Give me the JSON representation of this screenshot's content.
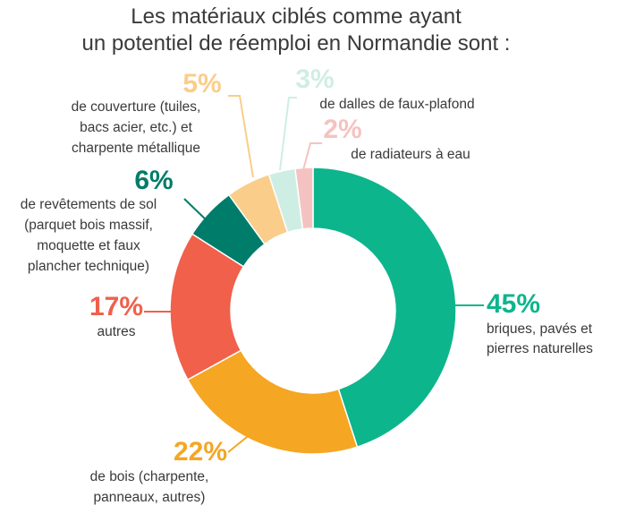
{
  "chart_data": {
    "type": "pie",
    "donut": true,
    "title_lines": [
      "Les matériaux ciblés comme ayant",
      "un potentiel de réemploi en Normandie sont :"
    ],
    "slices": [
      {
        "value": 45,
        "pct_label": "45%",
        "label_lines": [
          "briques, pavés et",
          "pierres naturelles"
        ],
        "color": "#0db58c"
      },
      {
        "value": 22,
        "pct_label": "22%",
        "label_lines": [
          "de bois (charpente,",
          "panneaux, autres)"
        ],
        "color": "#f5a623"
      },
      {
        "value": 17,
        "pct_label": "17%",
        "label_lines": [
          "autres"
        ],
        "color": "#f0604b"
      },
      {
        "value": 6,
        "pct_label": "6%",
        "label_lines": [
          "de revêtements de sol",
          "(parquet bois massif,",
          "moquette et faux",
          "plancher technique)"
        ],
        "color": "#007c6a"
      },
      {
        "value": 5,
        "pct_label": "5%",
        "label_lines": [
          "de couverture (tuiles,",
          "bacs acier, etc.) et",
          "charpente métallique"
        ],
        "color": "#fbcd8a"
      },
      {
        "value": 3,
        "pct_label": "3%",
        "label_lines": [
          "de dalles de faux-plafond"
        ],
        "color": "#cfeee3"
      },
      {
        "value": 2,
        "pct_label": "2%",
        "label_lines": [
          "de radiateurs à eau"
        ],
        "color": "#f4c3c1"
      }
    ],
    "legend": "none"
  }
}
